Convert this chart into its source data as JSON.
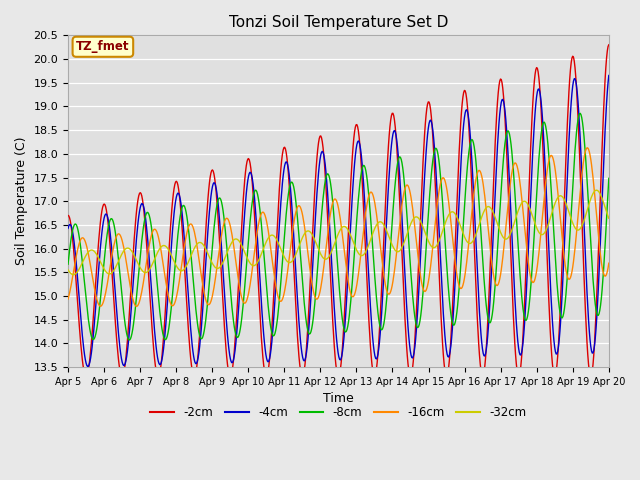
{
  "title": "Tonzi Soil Temperature Set D",
  "xlabel": "Time",
  "ylabel": "Soil Temperature (C)",
  "ylim": [
    13.5,
    20.5
  ],
  "xlim": [
    0,
    15
  ],
  "tick_labels": [
    "Apr 5",
    "Apr 6",
    "Apr 7",
    "Apr 8",
    "Apr 9",
    "Apr 10",
    "Apr 11",
    "Apr 12",
    "Apr 13",
    "Apr 14",
    "Apr 15",
    "Apr 16",
    "Apr 17",
    "Apr 18",
    "Apr 19",
    "Apr 20"
  ],
  "colors": {
    "-2cm": "#dd0000",
    "-4cm": "#0000cc",
    "-8cm": "#00bb00",
    "-16cm": "#ff8800",
    "-32cm": "#cccc00"
  },
  "legend_label_box": "TZ_fmet",
  "fig_background": "#e8e8e8",
  "plot_background": "#e0e0e0",
  "grid_color": "#ffffff"
}
